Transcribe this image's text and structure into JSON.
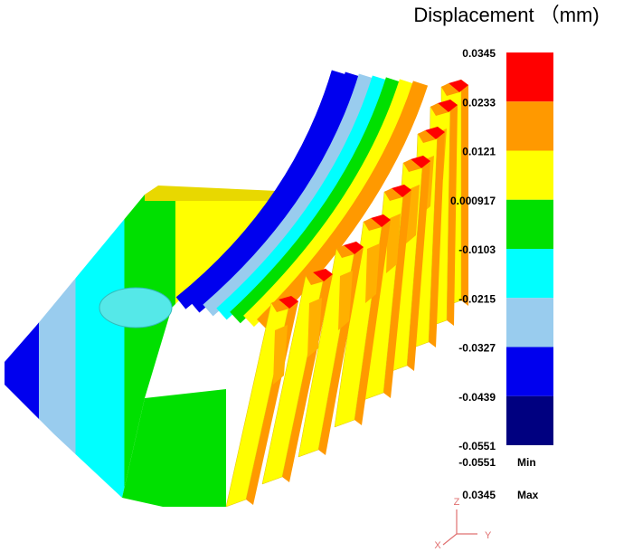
{
  "title": "Displacement （mm)",
  "legend": {
    "labels": [
      "0.0345",
      "0.0233",
      "0.0121",
      "0.000917",
      "-0.0103",
      "-0.0215",
      "-0.0327",
      "-0.0439",
      "-0.0551"
    ],
    "colors": [
      "#ff0000",
      "#ff9900",
      "#ffff00",
      "#00e000",
      "#00ffff",
      "#99ccee",
      "#0000ee",
      "#000080"
    ]
  },
  "range": {
    "min": {
      "value": "-0.0551",
      "label": "Min"
    },
    "max": {
      "value": "0.0345",
      "label": "Max"
    }
  },
  "triad": {
    "z": "Z",
    "y": "Y",
    "x": "X"
  }
}
